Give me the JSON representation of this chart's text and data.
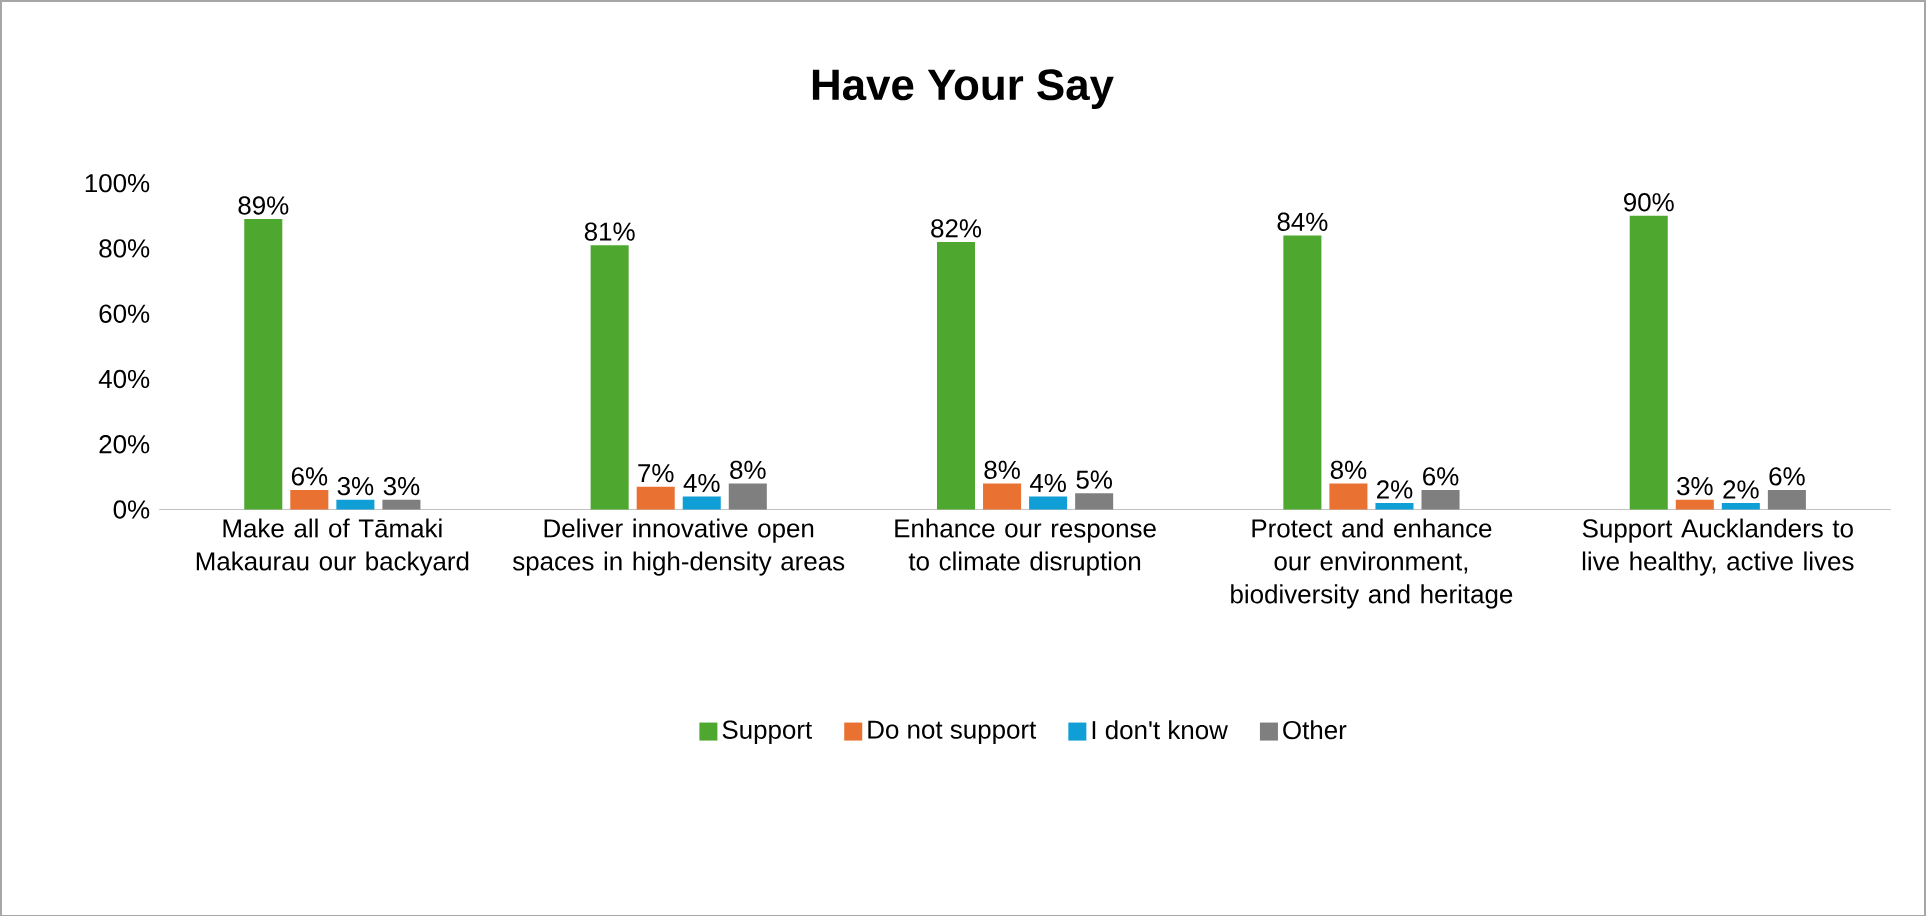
{
  "chart_data": {
    "type": "bar",
    "title": "Have Your Say",
    "categories": [
      "Make all of Tāmaki Makaurau our backyard",
      "Deliver innovative open spaces in high-density areas",
      "Enhance our response to climate disruption",
      "Protect and enhance our environment, biodiversity and heritage",
      "Support Aucklanders to live healthy, active lives"
    ],
    "series": [
      {
        "name": "Support",
        "color": "#4ea72e",
        "values": [
          89,
          81,
          82,
          84,
          90
        ],
        "value_labels": [
          "89%",
          "81%",
          "82%",
          "84%",
          "90%"
        ]
      },
      {
        "name": "Do not support",
        "color": "#e97132",
        "values": [
          6,
          7,
          8,
          8,
          3
        ],
        "value_labels": [
          "6%",
          "7%",
          "8%",
          "8%",
          "3%"
        ]
      },
      {
        "name": "I don't know",
        "color": "#0f9ed5",
        "values": [
          3,
          4,
          4,
          2,
          2
        ],
        "value_labels": [
          "3%",
          "4%",
          "4%",
          "2%",
          "2%"
        ]
      },
      {
        "name": "Other",
        "color": "#7f7f7f",
        "values": [
          3,
          8,
          5,
          6,
          6
        ],
        "value_labels": [
          "3%",
          "8%",
          "5%",
          "6%",
          "6%"
        ]
      }
    ],
    "ylim": [
      0,
      100
    ],
    "yticks": [
      {
        "value": 0,
        "label": "0%"
      },
      {
        "value": 20,
        "label": "20%"
      },
      {
        "value": 40,
        "label": "40%"
      },
      {
        "value": 60,
        "label": "60%"
      },
      {
        "value": 80,
        "label": "80%"
      },
      {
        "value": 100,
        "label": "100%"
      }
    ],
    "grid": false,
    "legend": "bottom"
  }
}
